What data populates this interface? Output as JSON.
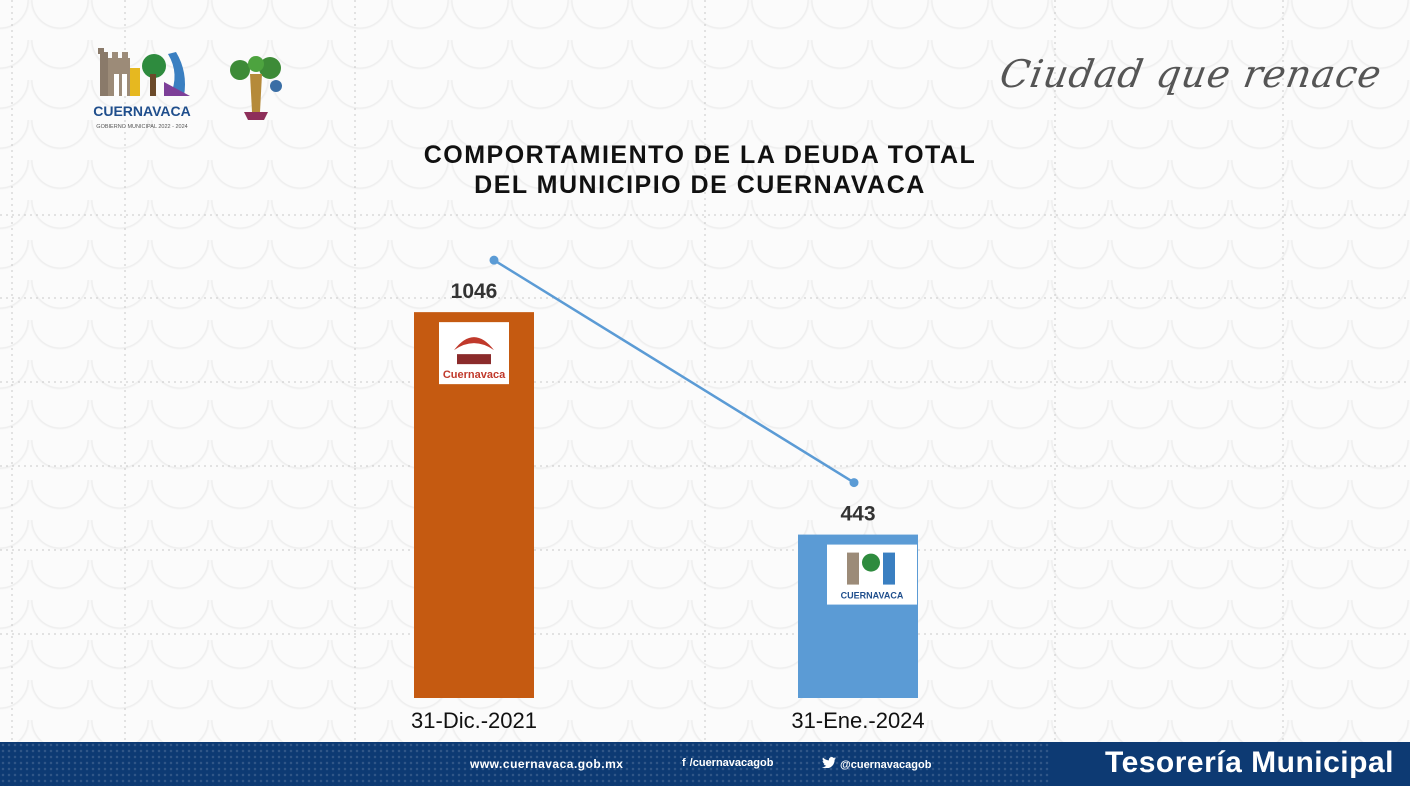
{
  "header": {
    "logo_text": "CUERNAVACA",
    "logo_subtext": "GOBIERNO MUNICIPAL 2022 - 2024",
    "slogan": "Ciudad que renace"
  },
  "chart_data": {
    "type": "bar",
    "title_line1": "COMPORTAMIENTO DE LA DEUDA TOTAL",
    "title_line2": "DEL MUNICIPIO DE CUERNAVACA",
    "categories": [
      "31-Dic.-2021",
      "31-Ene.-2024"
    ],
    "values": [
      1046,
      443
    ],
    "bar_colors": [
      "#c55a11",
      "#5b9bd5"
    ],
    "trend_line_color": "#5b9bd5",
    "bar_logos": [
      "Cuernavaca",
      "CUERNAVACA"
    ],
    "ylim": [
      0,
      1350
    ],
    "grid": true
  },
  "footer": {
    "website": "www.cuernavaca.gob.mx",
    "facebook": "/cuernavacagob",
    "twitter": "@cuernavacagob",
    "department": "Tesorería Municipal",
    "background_color": "#0d3a73"
  }
}
